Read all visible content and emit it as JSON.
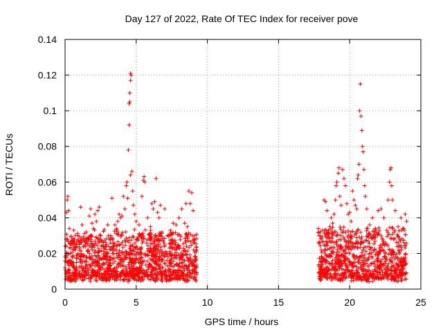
{
  "chart_data": {
    "type": "scatter",
    "title": "Day 127 of 2022, Rate Of TEC Index for receiver pove",
    "xlabel": "GPS time / hours",
    "ylabel": "ROTI / TECUs",
    "xlim": [
      0,
      25
    ],
    "ylim": [
      0,
      0.14
    ],
    "x_ticks": [
      0,
      5,
      10,
      15,
      20,
      25
    ],
    "y_ticks": [
      0,
      0.02,
      0.04,
      0.06,
      0.08,
      0.1,
      0.12,
      0.14
    ],
    "x_tick_labels": [
      "0",
      "5",
      "10",
      "15",
      "20",
      "25"
    ],
    "y_tick_labels": [
      "0",
      "0.02",
      "0.04",
      "0.06",
      "0.08",
      "0.1",
      "0.12",
      "0.14"
    ],
    "grid": true,
    "marker": "+",
    "marker_color": "#ff0000",
    "series": [
      {
        "points": [
          [
            0.0,
            0.012
          ],
          [
            0.05,
            0.018
          ],
          [
            0.1,
            0.028
          ],
          [
            0.1,
            0.043
          ],
          [
            0.15,
            0.05
          ],
          [
            0.2,
            0.052
          ],
          [
            0.25,
            0.044
          ],
          [
            0.3,
            0.034
          ],
          [
            0.35,
            0.02
          ],
          [
            0.4,
            0.015
          ],
          [
            0.5,
            0.026
          ],
          [
            0.6,
            0.033
          ],
          [
            0.7,
            0.022
          ],
          [
            0.8,
            0.019
          ],
          [
            0.9,
            0.03
          ],
          [
            1.0,
            0.025
          ],
          [
            1.1,
            0.046
          ],
          [
            1.2,
            0.036
          ],
          [
            1.3,
            0.024
          ],
          [
            1.4,
            0.028
          ],
          [
            1.5,
            0.032
          ],
          [
            1.6,
            0.022
          ],
          [
            1.7,
            0.041
          ],
          [
            1.8,
            0.045
          ],
          [
            1.9,
            0.037
          ],
          [
            2.0,
            0.034
          ],
          [
            2.1,
            0.042
          ],
          [
            2.2,
            0.038
          ],
          [
            2.3,
            0.044
          ],
          [
            2.4,
            0.046
          ],
          [
            2.5,
            0.03
          ],
          [
            2.6,
            0.027
          ],
          [
            2.7,
            0.024
          ],
          [
            2.8,
            0.02
          ],
          [
            2.9,
            0.024
          ],
          [
            3.0,
            0.036
          ],
          [
            3.1,
            0.028
          ],
          [
            3.2,
            0.03
          ],
          [
            3.3,
            0.051
          ],
          [
            3.4,
            0.026
          ],
          [
            3.5,
            0.036
          ],
          [
            3.6,
            0.022
          ],
          [
            3.7,
            0.038
          ],
          [
            3.8,
            0.042
          ],
          [
            3.9,
            0.04
          ],
          [
            4.0,
            0.041
          ],
          [
            4.1,
            0.052
          ],
          [
            4.2,
            0.045
          ],
          [
            4.3,
            0.058
          ],
          [
            4.35,
            0.06
          ],
          [
            4.4,
            0.051
          ],
          [
            4.45,
            0.078
          ],
          [
            4.5,
            0.092
          ],
          [
            4.5,
            0.104
          ],
          [
            4.55,
            0.105
          ],
          [
            4.55,
            0.11
          ],
          [
            4.6,
            0.117
          ],
          [
            4.6,
            0.121
          ],
          [
            4.65,
            0.12
          ],
          [
            4.6,
            0.064
          ],
          [
            4.7,
            0.066
          ],
          [
            4.75,
            0.055
          ],
          [
            4.8,
            0.047
          ],
          [
            4.9,
            0.042
          ],
          [
            5.0,
            0.038
          ],
          [
            5.2,
            0.036
          ],
          [
            5.4,
            0.052
          ],
          [
            5.5,
            0.061
          ],
          [
            5.55,
            0.063
          ],
          [
            5.6,
            0.06
          ],
          [
            5.8,
            0.04
          ],
          [
            5.9,
            0.031
          ],
          [
            6.0,
            0.035
          ],
          [
            6.1,
            0.048
          ],
          [
            6.2,
            0.045
          ],
          [
            6.3,
            0.049
          ],
          [
            6.4,
            0.062
          ],
          [
            6.5,
            0.043
          ],
          [
            6.6,
            0.04
          ],
          [
            6.7,
            0.047
          ],
          [
            6.8,
            0.032
          ],
          [
            7.0,
            0.045
          ],
          [
            7.2,
            0.03
          ],
          [
            7.4,
            0.033
          ],
          [
            7.6,
            0.037
          ],
          [
            7.8,
            0.036
          ],
          [
            8.0,
            0.04
          ],
          [
            8.2,
            0.045
          ],
          [
            8.4,
            0.037
          ],
          [
            8.5,
            0.048
          ],
          [
            8.6,
            0.035
          ],
          [
            8.7,
            0.055
          ],
          [
            8.8,
            0.048
          ],
          [
            8.9,
            0.054
          ],
          [
            9.0,
            0.044
          ],
          [
            9.1,
            0.03
          ],
          [
            9.2,
            0.022
          ],
          [
            17.8,
            0.034
          ],
          [
            17.9,
            0.026
          ],
          [
            18.0,
            0.022
          ],
          [
            18.1,
            0.033
          ],
          [
            18.2,
            0.05
          ],
          [
            18.3,
            0.049
          ],
          [
            18.4,
            0.044
          ],
          [
            18.5,
            0.032
          ],
          [
            18.6,
            0.035
          ],
          [
            18.7,
            0.04
          ],
          [
            18.8,
            0.037
          ],
          [
            18.9,
            0.042
          ],
          [
            19.0,
            0.05
          ],
          [
            19.05,
            0.058
          ],
          [
            19.1,
            0.06
          ],
          [
            19.2,
            0.065
          ],
          [
            19.25,
            0.068
          ],
          [
            19.3,
            0.052
          ],
          [
            19.4,
            0.047
          ],
          [
            19.5,
            0.067
          ],
          [
            19.6,
            0.062
          ],
          [
            19.7,
            0.058
          ],
          [
            19.8,
            0.048
          ],
          [
            19.9,
            0.042
          ],
          [
            20.0,
            0.043
          ],
          [
            20.1,
            0.038
          ],
          [
            20.2,
            0.055
          ],
          [
            20.3,
            0.05
          ],
          [
            20.4,
            0.047
          ],
          [
            20.5,
            0.045
          ],
          [
            20.55,
            0.062
          ],
          [
            20.6,
            0.064
          ],
          [
            20.65,
            0.07
          ],
          [
            20.7,
            0.1
          ],
          [
            20.75,
            0.115
          ],
          [
            20.8,
            0.097
          ],
          [
            20.85,
            0.089
          ],
          [
            20.9,
            0.08
          ],
          [
            20.95,
            0.077
          ],
          [
            21.0,
            0.067
          ],
          [
            21.05,
            0.058
          ],
          [
            21.1,
            0.052
          ],
          [
            21.2,
            0.045
          ],
          [
            21.4,
            0.036
          ],
          [
            21.6,
            0.04
          ],
          [
            21.8,
            0.034
          ],
          [
            22.0,
            0.044
          ],
          [
            22.2,
            0.045
          ],
          [
            22.4,
            0.04
          ],
          [
            22.6,
            0.033
          ],
          [
            22.7,
            0.05
          ],
          [
            22.8,
            0.06
          ],
          [
            22.85,
            0.067
          ],
          [
            22.9,
            0.068
          ],
          [
            22.95,
            0.058
          ],
          [
            23.0,
            0.05
          ],
          [
            23.2,
            0.044
          ],
          [
            23.4,
            0.035
          ],
          [
            23.6,
            0.04
          ],
          [
            23.8,
            0.034
          ],
          [
            23.9,
            0.042
          ],
          [
            24.0,
            0.038
          ]
        ],
        "dense_bands": [
          {
            "x_start": 0.0,
            "x_end": 9.25,
            "y_min": 0.004,
            "y_max": 0.03
          },
          {
            "x_start": 17.8,
            "x_end": 24.0,
            "y_min": 0.004,
            "y_max": 0.032
          }
        ]
      }
    ]
  }
}
